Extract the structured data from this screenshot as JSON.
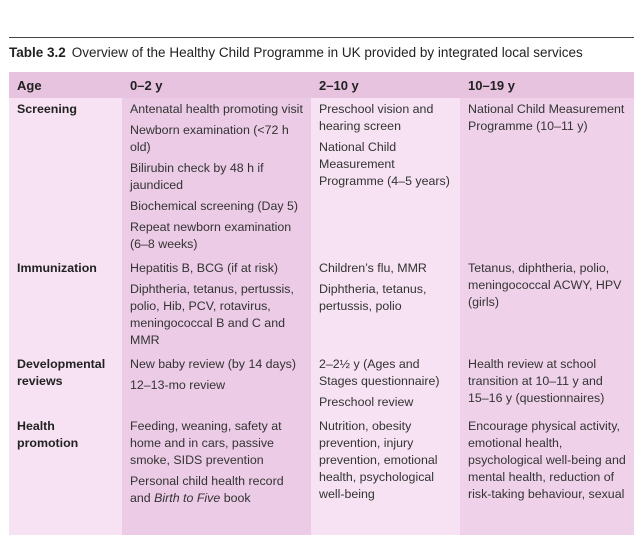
{
  "caption": {
    "label": "Table 3.2",
    "title": "Overview of the Healthy Child Programme in UK provided by integrated local services"
  },
  "table": {
    "header": [
      "Age",
      "0–2 y",
      "2–10 y",
      "10–19 y"
    ],
    "rows": [
      [
        "Screening",
        [
          "Antenatal health promoting visit",
          "Newborn examination (<72 h old)",
          "Bilirubin check by 48 h if jaundiced",
          "Biochemical screening (Day 5)",
          "Repeat newborn examination (6–8 weeks)"
        ],
        [
          "Preschool vision and hearing screen",
          "National Child Measurement Programme (4–5 years)"
        ],
        [
          "National Child Measurement Programme (10–11 y)"
        ]
      ],
      [
        "Immunization",
        [
          "Hepatitis B, BCG (if at risk)",
          "Diphtheria, tetanus, pertussis, polio, Hib, PCV, rotavirus, meningococcal B and C and MMR"
        ],
        [
          "Children’s flu, MMR",
          "Diphtheria, tetanus, pertussis, polio"
        ],
        [
          "Tetanus, diphtheria, polio, meningococcal ACWY, HPV (girls)"
        ]
      ],
      [
        "Developmental reviews",
        [
          "New baby review (by 14 days)",
          "12–13-mo review"
        ],
        [
          "2–2½ y (Ages and Stages questionnaire)",
          "Preschool review"
        ],
        [
          "Health review at school transition at 10–11 y and 15–16 y (questionnaires)"
        ]
      ],
      [
        "Health promotion",
        [
          "Feeding, weaning, safety at home and in cars, passive smoke, SIDS prevention",
          [
            "Personal child health record and",
            "Birth to Five",
            "book"
          ]
        ],
        [
          "Nutrition, obesity prevention, injury prevention, emotional health, psychological well-being"
        ],
        [
          "Encourage physical activity, emotional health, psychological well-being and mental health, reduction of risk-taking behaviour, sexual"
        ]
      ]
    ]
  }
}
